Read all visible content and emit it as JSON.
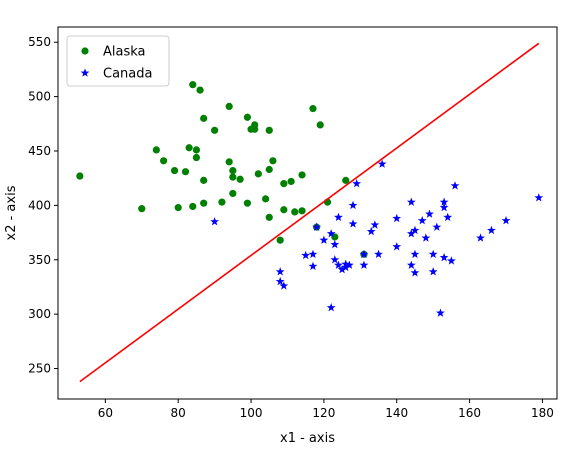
{
  "chart_data": {
    "type": "scatter",
    "xlabel": "x1 - axis",
    "ylabel": "x2 - axis",
    "xlim": [
      47,
      184
    ],
    "ylim": [
      222,
      564
    ],
    "xticks": [
      60,
      80,
      100,
      120,
      140,
      160,
      180
    ],
    "yticks": [
      250,
      300,
      350,
      400,
      450,
      500,
      550
    ],
    "grid": false,
    "legend_position": "top-left",
    "series": [
      {
        "name": "Alaska",
        "marker": "circle",
        "color": "#008000",
        "points": [
          [
            53,
            427
          ],
          [
            70,
            397
          ],
          [
            74,
            451
          ],
          [
            76,
            441
          ],
          [
            79,
            432
          ],
          [
            80,
            398
          ],
          [
            82,
            431
          ],
          [
            83,
            453
          ],
          [
            84,
            511
          ],
          [
            84,
            399
          ],
          [
            85,
            451
          ],
          [
            85,
            444
          ],
          [
            86,
            506
          ],
          [
            87,
            480
          ],
          [
            87,
            402
          ],
          [
            87,
            423
          ],
          [
            90,
            469
          ],
          [
            92,
            403
          ],
          [
            94,
            491
          ],
          [
            94,
            440
          ],
          [
            95,
            432
          ],
          [
            95,
            426
          ],
          [
            95,
            411
          ],
          [
            97,
            424
          ],
          [
            99,
            402
          ],
          [
            99,
            481
          ],
          [
            100,
            470
          ],
          [
            101,
            474
          ],
          [
            101,
            470
          ],
          [
            102,
            429
          ],
          [
            104,
            406
          ],
          [
            105,
            469
          ],
          [
            105,
            433
          ],
          [
            105,
            389
          ],
          [
            106,
            441
          ],
          [
            108,
            368
          ],
          [
            109,
            396
          ],
          [
            109,
            420
          ],
          [
            111,
            422
          ],
          [
            112,
            394
          ],
          [
            114,
            395
          ],
          [
            114,
            428
          ],
          [
            117,
            489
          ],
          [
            118,
            380
          ],
          [
            119,
            474
          ],
          [
            121,
            403
          ],
          [
            123,
            371
          ],
          [
            126,
            423
          ],
          [
            131,
            355
          ]
        ]
      },
      {
        "name": "Canada",
        "marker": "star",
        "color": "#0000ff",
        "points": [
          [
            90,
            385
          ],
          [
            108,
            339
          ],
          [
            108,
            330
          ],
          [
            109,
            326
          ],
          [
            115,
            354
          ],
          [
            117,
            355
          ],
          [
            117,
            344
          ],
          [
            118,
            380
          ],
          [
            120,
            368
          ],
          [
            122,
            306
          ],
          [
            122,
            374
          ],
          [
            123,
            364
          ],
          [
            123,
            350
          ],
          [
            124,
            389
          ],
          [
            124,
            345
          ],
          [
            125,
            341
          ],
          [
            126,
            346
          ],
          [
            126,
            343
          ],
          [
            127,
            345
          ],
          [
            128,
            400
          ],
          [
            128,
            383
          ],
          [
            129,
            420
          ],
          [
            131,
            345
          ],
          [
            131,
            355
          ],
          [
            133,
            376
          ],
          [
            134,
            382
          ],
          [
            135,
            355
          ],
          [
            136,
            438
          ],
          [
            140,
            388
          ],
          [
            140,
            362
          ],
          [
            144,
            403
          ],
          [
            144,
            374
          ],
          [
            144,
            345
          ],
          [
            145,
            377
          ],
          [
            145,
            338
          ],
          [
            145,
            355
          ],
          [
            147,
            386
          ],
          [
            148,
            370
          ],
          [
            149,
            392
          ],
          [
            150,
            355
          ],
          [
            150,
            339
          ],
          [
            151,
            380
          ],
          [
            152,
            301
          ],
          [
            153,
            352
          ],
          [
            153,
            398
          ],
          [
            153,
            403
          ],
          [
            154,
            389
          ],
          [
            155,
            349
          ],
          [
            156,
            418
          ],
          [
            163,
            370
          ],
          [
            166,
            377
          ],
          [
            170,
            386
          ],
          [
            179,
            407
          ]
        ]
      }
    ],
    "line": {
      "color": "#ff0000",
      "x": [
        53,
        179
      ],
      "y": [
        238,
        549
      ]
    },
    "legend": [
      {
        "name": "Alaska",
        "marker": "circle",
        "color": "#008000"
      },
      {
        "name": "Canada",
        "marker": "star",
        "color": "#0000ff"
      }
    ]
  }
}
